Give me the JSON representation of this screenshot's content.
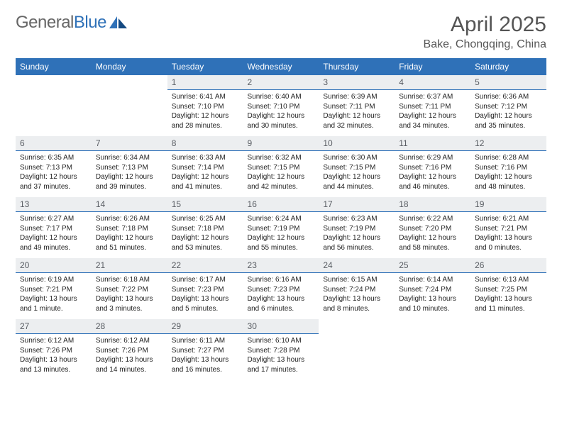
{
  "brand": {
    "partA": "General",
    "partB": "Blue"
  },
  "title": "April 2025",
  "location": "Bake, Chongqing, China",
  "colors": {
    "headerBg": "#2f71b8",
    "headerText": "#ffffff",
    "dayNumBg": "#eceef0",
    "dayNumBorder": "#2f71b8",
    "bodyText": "#222222",
    "titleText": "#555555"
  },
  "columns": [
    "Sunday",
    "Monday",
    "Tuesday",
    "Wednesday",
    "Thursday",
    "Friday",
    "Saturday"
  ],
  "weeks": [
    [
      null,
      null,
      {
        "d": "1",
        "sr": "6:41 AM",
        "ss": "7:10 PM",
        "dl": "12 hours and 28 minutes."
      },
      {
        "d": "2",
        "sr": "6:40 AM",
        "ss": "7:10 PM",
        "dl": "12 hours and 30 minutes."
      },
      {
        "d": "3",
        "sr": "6:39 AM",
        "ss": "7:11 PM",
        "dl": "12 hours and 32 minutes."
      },
      {
        "d": "4",
        "sr": "6:37 AM",
        "ss": "7:11 PM",
        "dl": "12 hours and 34 minutes."
      },
      {
        "d": "5",
        "sr": "6:36 AM",
        "ss": "7:12 PM",
        "dl": "12 hours and 35 minutes."
      }
    ],
    [
      {
        "d": "6",
        "sr": "6:35 AM",
        "ss": "7:13 PM",
        "dl": "12 hours and 37 minutes."
      },
      {
        "d": "7",
        "sr": "6:34 AM",
        "ss": "7:13 PM",
        "dl": "12 hours and 39 minutes."
      },
      {
        "d": "8",
        "sr": "6:33 AM",
        "ss": "7:14 PM",
        "dl": "12 hours and 41 minutes."
      },
      {
        "d": "9",
        "sr": "6:32 AM",
        "ss": "7:15 PM",
        "dl": "12 hours and 42 minutes."
      },
      {
        "d": "10",
        "sr": "6:30 AM",
        "ss": "7:15 PM",
        "dl": "12 hours and 44 minutes."
      },
      {
        "d": "11",
        "sr": "6:29 AM",
        "ss": "7:16 PM",
        "dl": "12 hours and 46 minutes."
      },
      {
        "d": "12",
        "sr": "6:28 AM",
        "ss": "7:16 PM",
        "dl": "12 hours and 48 minutes."
      }
    ],
    [
      {
        "d": "13",
        "sr": "6:27 AM",
        "ss": "7:17 PM",
        "dl": "12 hours and 49 minutes."
      },
      {
        "d": "14",
        "sr": "6:26 AM",
        "ss": "7:18 PM",
        "dl": "12 hours and 51 minutes."
      },
      {
        "d": "15",
        "sr": "6:25 AM",
        "ss": "7:18 PM",
        "dl": "12 hours and 53 minutes."
      },
      {
        "d": "16",
        "sr": "6:24 AM",
        "ss": "7:19 PM",
        "dl": "12 hours and 55 minutes."
      },
      {
        "d": "17",
        "sr": "6:23 AM",
        "ss": "7:19 PM",
        "dl": "12 hours and 56 minutes."
      },
      {
        "d": "18",
        "sr": "6:22 AM",
        "ss": "7:20 PM",
        "dl": "12 hours and 58 minutes."
      },
      {
        "d": "19",
        "sr": "6:21 AM",
        "ss": "7:21 PM",
        "dl": "13 hours and 0 minutes."
      }
    ],
    [
      {
        "d": "20",
        "sr": "6:19 AM",
        "ss": "7:21 PM",
        "dl": "13 hours and 1 minute."
      },
      {
        "d": "21",
        "sr": "6:18 AM",
        "ss": "7:22 PM",
        "dl": "13 hours and 3 minutes."
      },
      {
        "d": "22",
        "sr": "6:17 AM",
        "ss": "7:23 PM",
        "dl": "13 hours and 5 minutes."
      },
      {
        "d": "23",
        "sr": "6:16 AM",
        "ss": "7:23 PM",
        "dl": "13 hours and 6 minutes."
      },
      {
        "d": "24",
        "sr": "6:15 AM",
        "ss": "7:24 PM",
        "dl": "13 hours and 8 minutes."
      },
      {
        "d": "25",
        "sr": "6:14 AM",
        "ss": "7:24 PM",
        "dl": "13 hours and 10 minutes."
      },
      {
        "d": "26",
        "sr": "6:13 AM",
        "ss": "7:25 PM",
        "dl": "13 hours and 11 minutes."
      }
    ],
    [
      {
        "d": "27",
        "sr": "6:12 AM",
        "ss": "7:26 PM",
        "dl": "13 hours and 13 minutes."
      },
      {
        "d": "28",
        "sr": "6:12 AM",
        "ss": "7:26 PM",
        "dl": "13 hours and 14 minutes."
      },
      {
        "d": "29",
        "sr": "6:11 AM",
        "ss": "7:27 PM",
        "dl": "13 hours and 16 minutes."
      },
      {
        "d": "30",
        "sr": "6:10 AM",
        "ss": "7:28 PM",
        "dl": "13 hours and 17 minutes."
      },
      null,
      null,
      null
    ]
  ],
  "labels": {
    "sunrise": "Sunrise:",
    "sunset": "Sunset:",
    "daylight": "Daylight:"
  }
}
